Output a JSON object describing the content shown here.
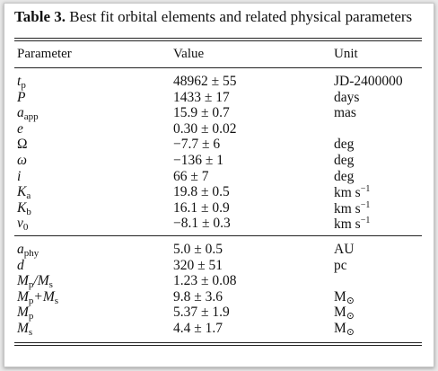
{
  "table": {
    "label": "Table 3.",
    "caption": "Best fit orbital elements and related physical parameters",
    "headers": [
      "Parameter",
      "Value",
      "Unit"
    ],
    "groups": [
      [
        {
          "parameter": [
            {
              "text": "t",
              "style": "i"
            },
            {
              "text": "p",
              "style": "sub"
            }
          ],
          "value": "48962 ± 55",
          "unit": [
            {
              "text": "JD-2400000",
              "style": "n"
            }
          ]
        },
        {
          "parameter": [
            {
              "text": "P",
              "style": "i"
            }
          ],
          "value": "1433 ± 17",
          "unit": [
            {
              "text": "days",
              "style": "n"
            }
          ]
        },
        {
          "parameter": [
            {
              "text": "a",
              "style": "i"
            },
            {
              "text": "app",
              "style": "sub"
            }
          ],
          "value": "15.9 ± 0.7",
          "unit": [
            {
              "text": "mas",
              "style": "n"
            }
          ]
        },
        {
          "parameter": [
            {
              "text": "e",
              "style": "i"
            }
          ],
          "value": "0.30 ± 0.02"
        },
        {
          "parameter": [
            {
              "text": "Ω",
              "style": "n"
            }
          ],
          "value": "−7.7 ± 6",
          "unit": [
            {
              "text": "deg",
              "style": "n"
            }
          ]
        },
        {
          "parameter": [
            {
              "text": "ω",
              "style": "i"
            }
          ],
          "value": "−136 ± 1",
          "unit": [
            {
              "text": "deg",
              "style": "n"
            }
          ]
        },
        {
          "parameter": [
            {
              "text": "i",
              "style": "i"
            }
          ],
          "value": "66 ± 7",
          "unit": [
            {
              "text": "deg",
              "style": "n"
            }
          ]
        },
        {
          "parameter": [
            {
              "text": "K",
              "style": "i"
            },
            {
              "text": "a",
              "style": "sub"
            }
          ],
          "value": "19.8 ± 0.5",
          "unit": [
            {
              "text": "km s",
              "style": "n"
            },
            {
              "text": "−1",
              "style": "sup"
            }
          ]
        },
        {
          "parameter": [
            {
              "text": "K",
              "style": "i"
            },
            {
              "text": "b",
              "style": "sub"
            }
          ],
          "value": "16.1 ± 0.9",
          "unit": [
            {
              "text": "km s",
              "style": "n"
            },
            {
              "text": "−1",
              "style": "sup"
            }
          ]
        },
        {
          "parameter": [
            {
              "text": "v",
              "style": "i"
            },
            {
              "text": "0",
              "style": "sub"
            }
          ],
          "value": "−8.1 ± 0.3",
          "unit": [
            {
              "text": "km s",
              "style": "n"
            },
            {
              "text": "−1",
              "style": "sup"
            }
          ]
        }
      ],
      [
        {
          "parameter": [
            {
              "text": "a",
              "style": "i"
            },
            {
              "text": "phy",
              "style": "sub"
            }
          ],
          "value": "5.0 ± 0.5",
          "unit": [
            {
              "text": "AU",
              "style": "n"
            }
          ]
        },
        {
          "parameter": [
            {
              "text": "d",
              "style": "i"
            }
          ],
          "value": "320 ± 51",
          "unit": [
            {
              "text": "pc",
              "style": "n"
            }
          ]
        },
        {
          "parameter": [
            {
              "text": "M",
              "style": "i"
            },
            {
              "text": "p",
              "style": "sub"
            },
            {
              "text": "/M",
              "style": "i"
            },
            {
              "text": "s",
              "style": "sub"
            }
          ],
          "value": "1.23 ± 0.08"
        },
        {
          "parameter": [
            {
              "text": "M",
              "style": "i"
            },
            {
              "text": "p",
              "style": "sub"
            },
            {
              "text": "+M",
              "style": "i"
            },
            {
              "text": "s",
              "style": "sub"
            }
          ],
          "value": "9.8 ± 3.6",
          "unit": [
            {
              "text": "M",
              "style": "n"
            },
            {
              "text": "⊙",
              "style": "sub"
            }
          ]
        },
        {
          "parameter": [
            {
              "text": "M",
              "style": "i"
            },
            {
              "text": "p",
              "style": "sub"
            }
          ],
          "value": "5.37 ± 1.9",
          "unit": [
            {
              "text": "M",
              "style": "n"
            },
            {
              "text": "⊙",
              "style": "sub"
            }
          ]
        },
        {
          "parameter": [
            {
              "text": "M",
              "style": "i"
            },
            {
              "text": "s",
              "style": "sub"
            }
          ],
          "value": "4.4 ± 1.7",
          "unit": [
            {
              "text": "M",
              "style": "n"
            },
            {
              "text": "⊙",
              "style": "sub"
            }
          ]
        }
      ]
    ]
  }
}
